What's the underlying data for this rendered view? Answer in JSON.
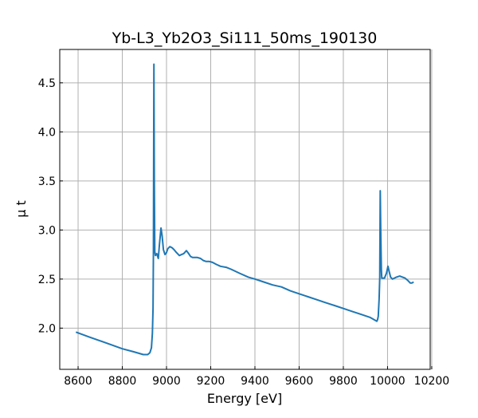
{
  "chart_data": {
    "type": "line",
    "title": "Yb-L3_Yb2O3_Si111_50ms_190130",
    "xlabel": "Energy [eV]",
    "ylabel": "μ t",
    "xlim": [
      8517,
      10193
    ],
    "ylim": [
      1.58,
      4.84
    ],
    "xticks": [
      8600,
      8800,
      9000,
      9200,
      9400,
      9600,
      9800,
      10000,
      10200
    ],
    "yticks": [
      2.0,
      2.5,
      3.0,
      3.5,
      4.0,
      4.5
    ],
    "xtick_labels": [
      "8600",
      "8800",
      "9000",
      "9200",
      "9400",
      "9600",
      "9800",
      "10000",
      "10200"
    ],
    "ytick_labels": [
      "2.0",
      "2.5",
      "3.0",
      "3.5",
      "4.0",
      "4.5"
    ],
    "grid": true,
    "color": "#1f77b4",
    "series": [
      {
        "name": "mu t",
        "x": [
          8590,
          8650,
          8700,
          8750,
          8800,
          8850,
          8895,
          8915,
          8925,
          8932,
          8936,
          8939,
          8941,
          8943,
          8945,
          8947,
          8950,
          8956,
          8963,
          8968,
          8975,
          8980,
          8986,
          8993,
          9000,
          9006,
          9015,
          9025,
          9034,
          9045,
          9058,
          9068,
          9078,
          9090,
          9100,
          9109,
          9118,
          9126,
          9140,
          9154,
          9166,
          9178,
          9192,
          9208,
          9225,
          9244,
          9270,
          9292,
          9330,
          9370,
          9400,
          9440,
          9480,
          9520,
          9560,
          9600,
          9640,
          9680,
          9720,
          9760,
          9800,
          9840,
          9880,
          9920,
          9944,
          9952,
          9955,
          9958,
          9962,
          9965,
          9967,
          9969,
          9972,
          9974,
          9980,
          9986,
          9995,
          10002,
          10007,
          10014,
          10022,
          10031,
          10040,
          10055,
          10068,
          10079,
          10090,
          10103,
          10110,
          10118
        ],
        "y": [
          1.96,
          1.91,
          1.87,
          1.83,
          1.79,
          1.76,
          1.73,
          1.73,
          1.75,
          1.8,
          1.95,
          2.2,
          2.8,
          4.69,
          3.5,
          2.78,
          2.74,
          2.76,
          2.71,
          2.85,
          3.02,
          2.94,
          2.8,
          2.75,
          2.77,
          2.81,
          2.83,
          2.82,
          2.8,
          2.77,
          2.74,
          2.75,
          2.76,
          2.79,
          2.76,
          2.73,
          2.72,
          2.72,
          2.72,
          2.71,
          2.69,
          2.68,
          2.68,
          2.67,
          2.65,
          2.63,
          2.62,
          2.6,
          2.56,
          2.52,
          2.5,
          2.47,
          2.44,
          2.42,
          2.38,
          2.35,
          2.32,
          2.29,
          2.26,
          2.23,
          2.2,
          2.17,
          2.14,
          2.11,
          2.08,
          2.07,
          2.09,
          2.12,
          2.3,
          2.52,
          3.4,
          3.0,
          2.6,
          2.51,
          2.51,
          2.51,
          2.56,
          2.63,
          2.58,
          2.52,
          2.5,
          2.51,
          2.52,
          2.53,
          2.52,
          2.51,
          2.49,
          2.46,
          2.46,
          2.47
        ]
      }
    ]
  }
}
